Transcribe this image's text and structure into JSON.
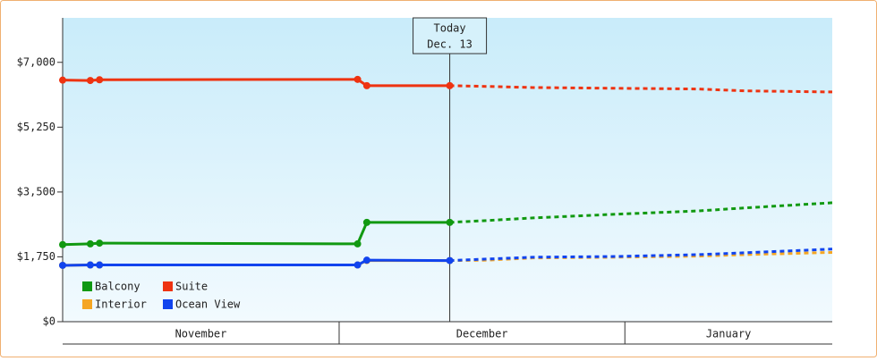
{
  "chart_data": {
    "type": "line",
    "x": [
      0,
      3,
      4,
      32,
      33,
      42,
      46,
      51,
      60,
      69,
      74,
      83.5
    ],
    "xlim": [
      0,
      83.5
    ],
    "xticks": [
      {
        "value": 0,
        "label": "November"
      },
      {
        "value": 30,
        "label": "December"
      },
      {
        "value": 61,
        "label": "January"
      }
    ],
    "ylim": [
      0,
      8200
    ],
    "yticks": [
      {
        "value": 0,
        "label": "$0"
      },
      {
        "value": 1750,
        "label": "$1,750"
      },
      {
        "value": 3500,
        "label": "$3,500"
      },
      {
        "value": 5250,
        "label": "$5,250"
      },
      {
        "value": 7000,
        "label": "$7,000"
      }
    ],
    "today": {
      "x": 42,
      "text": [
        "Today",
        "Dec. 13"
      ]
    },
    "legend": "bottom-left",
    "series": [
      {
        "name": "Balcony",
        "color": "#119911",
        "values": [
          2080,
          2100,
          2120,
          2100,
          2680,
          2680,
          2730,
          2800,
          2900,
          2990,
          3070,
          3210
        ]
      },
      {
        "name": "Suite",
        "color": "#ee3311",
        "values": [
          6520,
          6510,
          6530,
          6540,
          6370,
          6370,
          6350,
          6320,
          6300,
          6280,
          6230,
          6200
        ]
      },
      {
        "name": "Interior",
        "color": "#f5a623",
        "values": [
          1520,
          1530,
          1530,
          1530,
          1650,
          1650,
          1660,
          1720,
          1740,
          1770,
          1810,
          1870
        ]
      },
      {
        "name": "Ocean View",
        "color": "#1144ee",
        "values": [
          1520,
          1530,
          1530,
          1530,
          1660,
          1650,
          1690,
          1740,
          1760,
          1810,
          1860,
          1960
        ]
      }
    ]
  }
}
